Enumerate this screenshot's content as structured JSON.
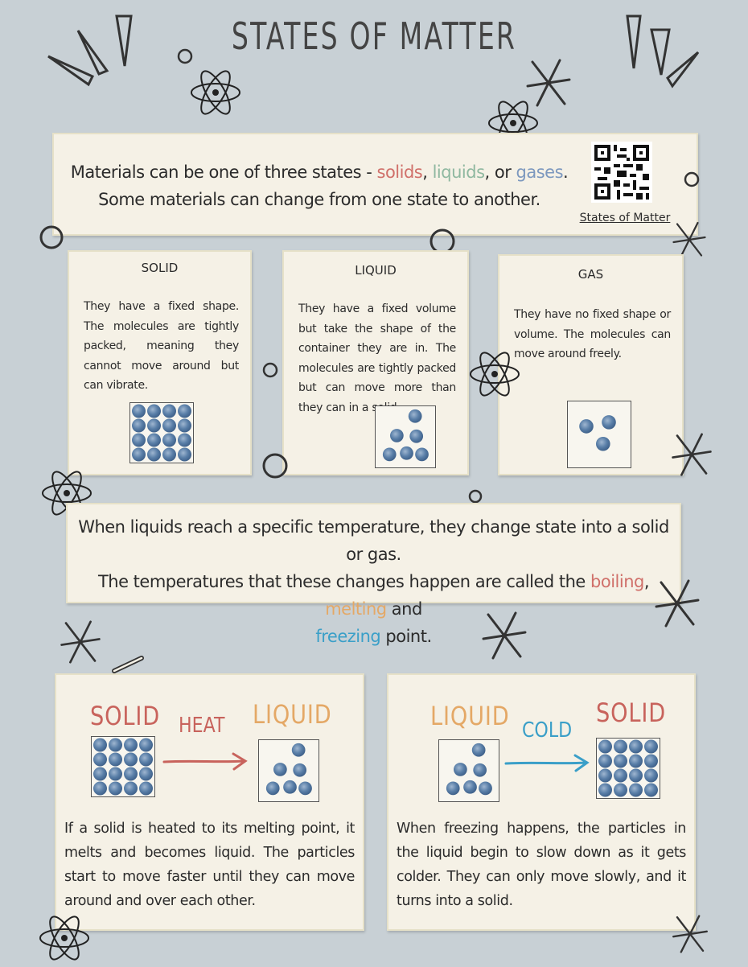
{
  "title": "STATES OF MATTER",
  "intro": {
    "line1_prefix": "Materials can be one of three states - ",
    "solids": "solids",
    "comma1": ", ",
    "liquids": "liquids",
    "comma2": ", or ",
    "gases": "gases",
    "period": ".",
    "line2": "Some materials can change from one state to another.",
    "qr_label": "States of Matter"
  },
  "states": [
    {
      "title": "SOLID",
      "description": "They have a fixed shape. The molecules are tightly packed, meaning they cannot move around but can vibrate."
    },
    {
      "title": "LIQUID",
      "description": "They have a fixed volume but take the shape of the container they are in. The molecules are tightly packed but can move more than they can in a solid."
    },
    {
      "title": "GAS",
      "description": "They have no fixed shape or volume. The molecules can move around freely."
    }
  ],
  "change": {
    "line1": "When liquids reach a specific temperature, they change state into a solid or gas.",
    "line2_prefix": "The temperatures that these changes happen are called the ",
    "boiling": "boiling",
    "comma": ", ",
    "melting": "melting",
    "and": " and",
    "freezing": "freezing",
    "suffix": " point."
  },
  "melting_panel": {
    "from_label": "SOLID",
    "arrow_label": "HEAT",
    "to_label": "LIQUID",
    "description": "If a solid is heated to its melting point, it melts and becomes liquid. The particles start to move faster until they can move around and over each other."
  },
  "freezing_panel": {
    "from_label": "LIQUID",
    "arrow_label": "COLD",
    "to_label": "SOLID",
    "description": "When freezing happens,  the particles in the liquid begin to slow down as it gets colder. They can only move slowly, and it turns into a solid."
  },
  "colors": {
    "background": "#c8d0d5",
    "card": "#f5f1e6",
    "solids": "#d0706a",
    "liquids": "#8fb8a0",
    "gases": "#7c98be",
    "heat_arrow": "#c8635c",
    "cold_arrow": "#3a9fc8",
    "particle": "#5a7fa8"
  },
  "icons": [
    "atom-icon",
    "star-burst-icon",
    "spike-icon",
    "ring-icon",
    "qr-code-icon",
    "arrow-right-icon"
  ]
}
